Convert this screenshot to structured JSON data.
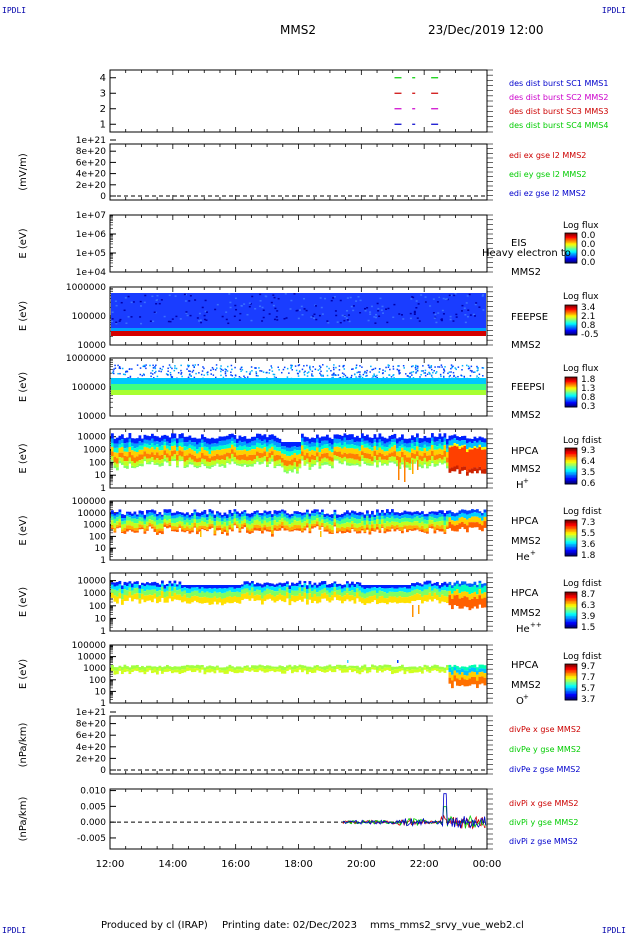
{
  "corner_label": "IPDLI",
  "header": {
    "spacecraft": "MMS2",
    "datetime": "23/Dec/2019 12:00"
  },
  "footer": {
    "produced_by": "Produced by cl (IRAP)",
    "printing_date": "Printing date: 02/Dec/2023",
    "file": "mms_mms2_srvy_vue_web2.cl"
  },
  "colors": {
    "red": "#cc0000",
    "green": "#00cc00",
    "blue": "#0000cc",
    "magenta": "#cc00cc"
  },
  "chart_data": [
    {
      "type": "scatter",
      "id": "burst",
      "x_time": [
        "21:10",
        "21:40",
        "22:20"
      ],
      "ylim": [
        0.5,
        4.5
      ],
      "yticks": [
        "1",
        "2",
        "3",
        "4"
      ],
      "series": [
        {
          "name": "des dist burst SC1 MMS1",
          "color": "#0000cc",
          "y": 1
        },
        {
          "name": "des dist burst SC2 MMS2",
          "color": "#cc00cc",
          "y": 2
        },
        {
          "name": "des dist burst SC3 MMS3",
          "color": "#cc0000",
          "y": 3
        },
        {
          "name": "des dist burst SC4 MMS4",
          "color": "#00cc00",
          "y": 4
        }
      ]
    },
    {
      "type": "line",
      "id": "edi",
      "ylabel": "(mV/m)",
      "yticks": [
        "0",
        "2e+20",
        "4e+20",
        "6e+20",
        "8e+20",
        "1e+21"
      ],
      "ylim": [
        0,
        1e+21
      ],
      "series": [
        {
          "name": "edi ex gse l2 MMS2",
          "color": "#cc0000"
        },
        {
          "name": "edi ey gse l2 MMS2",
          "color": "#00cc00"
        },
        {
          "name": "edi ez gse l2 MMS2",
          "color": "#0000cc"
        }
      ]
    },
    {
      "type": "heatmap",
      "id": "eis",
      "ylabel": "E (eV)",
      "yticks": [
        "1e+04",
        "1e+05",
        "1e+06",
        "1e+07"
      ],
      "ylim": [
        10000.0,
        10000000.0
      ],
      "label_lines": [
        "EIS",
        "MMS2"
      ],
      "overlay_text": "Heavy electron to",
      "colorbar": {
        "title": "Log flux",
        "ticks": [
          "0.0",
          "0.0",
          "0.0",
          "0.0"
        ]
      }
    },
    {
      "type": "heatmap",
      "id": "feepse",
      "ylabel": "E (eV)",
      "yticks": [
        "10000",
        "100000",
        "1000000"
      ],
      "ylim": [
        10000.0,
        1000000.0
      ],
      "label_lines": [
        "FEEPSE",
        "MMS2"
      ],
      "colorbar": {
        "title": "Log flux",
        "ticks": [
          "3.4",
          "2.1",
          "0.8",
          "-0.5"
        ]
      }
    },
    {
      "type": "heatmap",
      "id": "feepsi",
      "ylabel": "E (eV)",
      "yticks": [
        "10000",
        "100000",
        "1000000"
      ],
      "ylim": [
        10000.0,
        1000000.0
      ],
      "label_lines": [
        "FEEPSI",
        "MMS2"
      ],
      "colorbar": {
        "title": "Log flux",
        "ticks": [
          "1.8",
          "1.3",
          "0.8",
          "0.3"
        ]
      }
    },
    {
      "type": "heatmap",
      "id": "hpca_h",
      "ylabel": "E (eV)",
      "yticks": [
        "1",
        "10",
        "100",
        "1000",
        "10000"
      ],
      "ylim": [
        1,
        40000
      ],
      "label_lines": [
        "HPCA",
        "MMS2"
      ],
      "species": "H",
      "charge": "+",
      "colorbar": {
        "title": "Log fdist",
        "ticks": [
          "9.3",
          "6.4",
          "3.5",
          "0.6"
        ]
      }
    },
    {
      "type": "heatmap",
      "id": "hpca_he",
      "ylabel": "E (eV)",
      "yticks": [
        "1",
        "10",
        "100",
        "1000",
        "10000",
        "100000"
      ],
      "ylim": [
        1,
        100000
      ],
      "label_lines": [
        "HPCA",
        "MMS2"
      ],
      "species": "He",
      "charge": "+",
      "colorbar": {
        "title": "Log fdist",
        "ticks": [
          "7.3",
          "5.5",
          "3.6",
          "1.8"
        ]
      }
    },
    {
      "type": "heatmap",
      "id": "hpca_hepp",
      "ylabel": "E (eV)",
      "yticks": [
        "1",
        "10",
        "100",
        "1000",
        "10000"
      ],
      "ylim": [
        1,
        40000
      ],
      "label_lines": [
        "HPCA",
        "MMS2"
      ],
      "species": "He",
      "charge": "++",
      "colorbar": {
        "title": "Log fdist",
        "ticks": [
          "8.7",
          "6.3",
          "3.9",
          "1.5"
        ]
      }
    },
    {
      "type": "heatmap",
      "id": "hpca_o",
      "ylabel": "E (eV)",
      "yticks": [
        "1",
        "10",
        "100",
        "1000",
        "10000",
        "100000"
      ],
      "ylim": [
        1,
        100000
      ],
      "label_lines": [
        "HPCA",
        "MMS2"
      ],
      "species": "O",
      "charge": "+",
      "colorbar": {
        "title": "Log fdist",
        "ticks": [
          "9.7",
          "7.7",
          "5.7",
          "3.7"
        ]
      }
    },
    {
      "type": "line",
      "id": "divpe",
      "ylabel": "(nPa/km)",
      "yticks": [
        "0",
        "2e+20",
        "4e+20",
        "6e+20",
        "8e+20",
        "1e+21"
      ],
      "ylim": [
        0,
        1e+21
      ],
      "series": [
        {
          "name": "divPe x gse MMS2",
          "color": "#cc0000"
        },
        {
          "name": "divPe y gse MMS2",
          "color": "#00cc00"
        },
        {
          "name": "divPe z gse MMS2",
          "color": "#0000cc"
        }
      ]
    },
    {
      "type": "line",
      "id": "divpi",
      "ylabel": "(nPa/km)",
      "yticks": [
        "-0.005",
        "0.000",
        "0.005",
        "0.010"
      ],
      "ylim": [
        -0.0085,
        0.0105
      ],
      "data_start": "19:25",
      "spike_time": "22:40",
      "spike_max": 0.009,
      "series": [
        {
          "name": "divPi x gse MMS2",
          "color": "#cc0000"
        },
        {
          "name": "divPi y gse MMS2",
          "color": "#00cc00"
        },
        {
          "name": "divPi z gse MMS2",
          "color": "#0000cc"
        }
      ]
    }
  ],
  "time_axis": {
    "ticks": [
      "12:00",
      "14:00",
      "16:00",
      "18:00",
      "20:00",
      "22:00",
      "00:00"
    ]
  }
}
